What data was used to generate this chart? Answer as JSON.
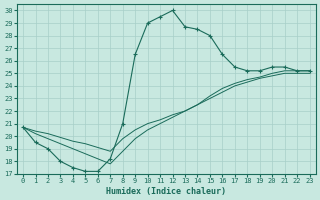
{
  "xlabel": "Humidex (Indice chaleur)",
  "bg_color": "#c8e8e0",
  "line_color": "#1a6b5a",
  "grid_color": "#a8cfc8",
  "xlim": [
    -0.5,
    23.5
  ],
  "ylim": [
    17,
    30.5
  ],
  "xticks": [
    0,
    1,
    2,
    3,
    4,
    5,
    6,
    7,
    8,
    9,
    10,
    11,
    12,
    13,
    14,
    15,
    16,
    17,
    18,
    19,
    20,
    21,
    22,
    23
  ],
  "yticks": [
    17,
    18,
    19,
    20,
    21,
    22,
    23,
    24,
    25,
    26,
    27,
    28,
    29,
    30
  ],
  "line1_x": [
    0,
    1,
    2,
    3,
    4,
    5,
    6,
    7,
    8,
    9,
    10,
    11,
    12,
    13,
    14,
    15,
    16,
    17,
    18,
    19,
    20,
    21,
    22,
    23
  ],
  "line1_y": [
    20.7,
    19.5,
    19.0,
    18.0,
    17.5,
    17.2,
    17.2,
    18.2,
    21.0,
    26.5,
    29.0,
    29.5,
    30.0,
    28.7,
    28.5,
    28.0,
    26.5,
    25.5,
    25.2,
    25.2,
    25.5,
    25.5,
    25.2,
    25.2
  ],
  "line2_x": [
    0,
    1,
    2,
    3,
    4,
    5,
    6,
    7,
    8,
    9,
    10,
    11,
    12,
    13,
    14,
    15,
    16,
    17,
    18,
    19,
    20,
    21,
    22,
    23
  ],
  "line2_y": [
    20.7,
    20.4,
    20.2,
    19.9,
    19.6,
    19.4,
    19.1,
    18.8,
    19.8,
    20.5,
    21.0,
    21.3,
    21.7,
    22.0,
    22.5,
    23.0,
    23.5,
    24.0,
    24.3,
    24.6,
    24.8,
    25.0,
    25.0,
    25.0
  ],
  "line3_x": [
    0,
    1,
    2,
    3,
    4,
    5,
    6,
    7,
    8,
    9,
    10,
    11,
    12,
    13,
    14,
    15,
    16,
    17,
    18,
    19,
    20,
    21,
    22,
    23
  ],
  "line3_y": [
    20.7,
    20.2,
    19.8,
    19.4,
    19.0,
    18.6,
    18.2,
    17.8,
    18.8,
    19.8,
    20.5,
    21.0,
    21.5,
    22.0,
    22.5,
    23.2,
    23.8,
    24.2,
    24.5,
    24.7,
    25.0,
    25.2,
    25.2,
    25.2
  ]
}
